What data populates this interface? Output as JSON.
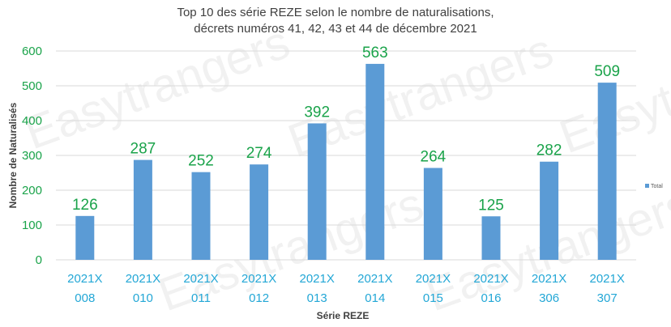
{
  "chart_data": {
    "type": "bar",
    "title": "Top 10 des série REZE selon le nombre de naturalisations,",
    "subtitle": "décrets numéros 41, 42, 43 et 44 de décembre 2021",
    "xlabel": "Série REZE",
    "ylabel": "Nombre de Naturalisés",
    "ylim": [
      0,
      600
    ],
    "yticks": [
      "0",
      "100",
      "200",
      "300",
      "400",
      "500",
      "600"
    ],
    "grid": true,
    "legend": "right",
    "categories": [
      [
        "2021X",
        "008"
      ],
      [
        "2021X",
        "010"
      ],
      [
        "2021X",
        "011"
      ],
      [
        "2021X",
        "012"
      ],
      [
        "2021X",
        "013"
      ],
      [
        "2021X",
        "014"
      ],
      [
        "2021X",
        "015"
      ],
      [
        "2021X",
        "016"
      ],
      [
        "2021X",
        "306"
      ],
      [
        "2021X",
        "307"
      ]
    ],
    "series": [
      {
        "name": "Total",
        "values": [
          126,
          287,
          252,
          274,
          392,
          563,
          264,
          125,
          282,
          509
        ],
        "color": "#5b9bd5"
      }
    ],
    "data_label_color": "#1aa34a",
    "tick_label_color": "#23a7d6"
  },
  "watermark": {
    "text": "Easytrangers"
  }
}
